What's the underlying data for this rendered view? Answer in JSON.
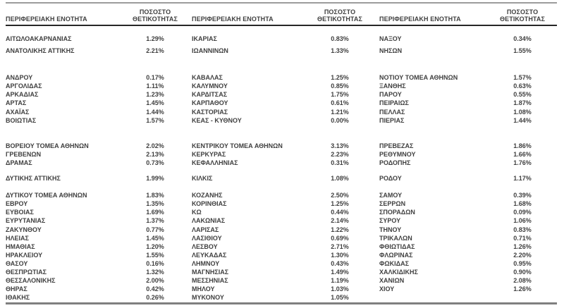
{
  "colors": {
    "text": "#3f3f3f",
    "rule_top": "#9c9c9c",
    "rule_header": "#262626",
    "rule_bottom": "#7f7f7f"
  },
  "table": {
    "headers": {
      "region": "ΠΕΡΙΦΕΡΕΙΑΚΗ ΕΝΟΤΗΤΑ",
      "rate": "ΠΟΣΟΣΤΟ ΘΕΤΙΚΟΤΗΤΑΣ"
    },
    "groups": [
      {
        "rows": [
          [
            "ΑΙΤΩΛΟΑΚΑΡΝΑΝΙΑΣ",
            "1.29%",
            "ΙΚΑΡΙΑΣ",
            "0.83%",
            "ΝΑΞΟΥ",
            "0.34%"
          ]
        ]
      },
      {
        "rows": [
          [
            "ΑΝΑΤΟΛΙΚΗΣ ΑΤΤΙΚΗΣ",
            "2.21%",
            "ΙΩΑΝΝΙΝΩΝ",
            "1.33%",
            "ΝΗΣΩΝ",
            "1.55%"
          ]
        ]
      },
      {
        "rows": [
          [
            "ΑΝΔΡΟΥ",
            "0.17%",
            "ΚΑΒΑΛΑΣ",
            "1.25%",
            "ΝΟΤΙΟΥ ΤΟΜΕΑ ΑΘΗΝΩΝ",
            "1.57%"
          ],
          [
            "ΑΡΓΟΛΙΔΑΣ",
            "1.11%",
            "ΚΑΛΥΜΝΟΥ",
            "0.85%",
            "ΞΑΝΘΗΣ",
            "0.63%"
          ],
          [
            "ΑΡΚΑΔΙΑΣ",
            "1.23%",
            "ΚΑΡΔΙΤΣΑΣ",
            "1.75%",
            "ΠΑΡΟΥ",
            "0.55%"
          ],
          [
            "ΑΡΤΑΣ",
            "1.45%",
            "ΚΑΡΠΑΘΟΥ",
            "0.61%",
            "ΠΕΙΡΑΙΩΣ",
            "1.87%"
          ],
          [
            "ΑΧΑΪΑΣ",
            "1.44%",
            "ΚΑΣΤΟΡΙΑΣ",
            "1.21%",
            "ΠΕΛΛΑΣ",
            "1.08%"
          ],
          [
            "ΒΟΙΩΤΙΑΣ",
            "1.57%",
            "ΚΕΑΣ - ΚΥΘΝΟΥ",
            "0.00%",
            "ΠΙΕΡΙΑΣ",
            "1.44%"
          ]
        ]
      },
      {
        "rows": [
          [
            "ΒΟΡΕΙΟΥ ΤΟΜΕΑ ΑΘΗΝΩΝ",
            "2.02%",
            "ΚΕΝΤΡΙΚΟΥ ΤΟΜΕΑ ΑΘΗΝΩΝ",
            "3.13%",
            "ΠΡΕΒΕΖΑΣ",
            "1.86%"
          ],
          [
            "ΓΡΕΒΕΝΩΝ",
            "2.13%",
            "ΚΕΡΚΥΡΑΣ",
            "2.23%",
            "ΡΕΘΥΜΝΟΥ",
            "1.66%"
          ],
          [
            "ΔΡΑΜΑΣ",
            "0.73%",
            "ΚΕΦΑΛΛΗΝΙΑΣ",
            "0.31%",
            "ΡΟΔΟΠΗΣ",
            "1.76%"
          ]
        ]
      },
      {
        "rows": [
          [
            "ΔΥΤΙΚΗΣ ΑΤΤΙΚΗΣ",
            "1.99%",
            "ΚΙΛΚΙΣ",
            "1.08%",
            "ΡΟΔΟΥ",
            "1.17%"
          ]
        ]
      },
      {
        "rows": [
          [
            "ΔΥΤΙΚΟΥ ΤΟΜΕΑ ΑΘΗΝΩΝ",
            "1.83%",
            "ΚΟΖΑΝΗΣ",
            "2.50%",
            "ΣΑΜΟΥ",
            "0.39%"
          ],
          [
            "ΕΒΡΟΥ",
            "1.35%",
            "ΚΟΡΙΝΘΙΑΣ",
            "1.25%",
            "ΣΕΡΡΩΝ",
            "1.68%"
          ],
          [
            "ΕΥΒΟΙΑΣ",
            "1.69%",
            "ΚΩ",
            "0.44%",
            "ΣΠΟΡΑΔΩΝ",
            "0.09%"
          ],
          [
            "ΕΥΡΥΤΑΝΙΑΣ",
            "1.37%",
            "ΛΑΚΩΝΙΑΣ",
            "2.14%",
            "ΣΥΡΟΥ",
            "1.06%"
          ],
          [
            "ΖΑΚΥΝΘΟΥ",
            "0.77%",
            "ΛΑΡΙΣΑΣ",
            "1.22%",
            "ΤΗΝΟΥ",
            "0.83%"
          ],
          [
            "ΗΛΕΙΑΣ",
            "1.45%",
            "ΛΑΣΙΘΙΟΥ",
            "0.69%",
            "ΤΡΙΚΑΛΩΝ",
            "0.71%"
          ],
          [
            "ΗΜΑΘΙΑΣ",
            "1.20%",
            "ΛΕΣΒΟΥ",
            "2.71%",
            "ΦΘΙΩΤΙΔΑΣ",
            "1.26%"
          ],
          [
            "ΗΡΑΚΛΕΙΟΥ",
            "1.55%",
            "ΛΕΥΚΑΔΑΣ",
            "1.30%",
            "ΦΛΩΡΙΝΑΣ",
            "2.20%"
          ],
          [
            "ΘΑΣΟΥ",
            "0.16%",
            "ΛΗΜΝΟΥ",
            "0.43%",
            "ΦΩΚΙΔΑΣ",
            "0.95%"
          ],
          [
            "ΘΕΣΠΡΩΤΙΑΣ",
            "1.32%",
            "ΜΑΓΝΗΣΙΑΣ",
            "1.49%",
            "ΧΑΛΚΙΔΙΚΗΣ",
            "0.90%"
          ],
          [
            "ΘΕΣΣΑΛΟΝΙΚΗΣ",
            "2.00%",
            "ΜΕΣΣΗΝΙΑΣ",
            "1.19%",
            "ΧΑΝΙΩΝ",
            "2.08%"
          ],
          [
            "ΘΗΡΑΣ",
            "0.42%",
            "ΜΗΛΟΥ",
            "1.03%",
            "ΧΙΟΥ",
            "1.26%"
          ],
          [
            "ΙΘΑΚΗΣ",
            "0.26%",
            "ΜΥΚΟΝΟΥ",
            "1.05%",
            "",
            ""
          ]
        ]
      }
    ]
  }
}
